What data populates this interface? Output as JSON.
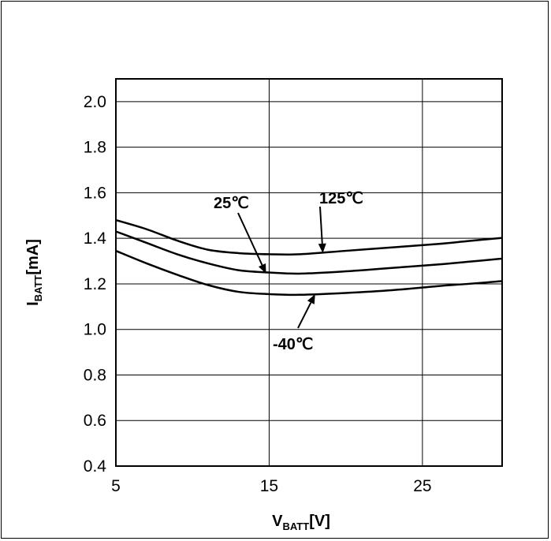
{
  "chart_data": {
    "type": "line",
    "title": "",
    "xlabel": {
      "main": "V",
      "sub": "BATT",
      "unit": "[V]"
    },
    "ylabel": {
      "main": "I",
      "sub": "BATT",
      "unit": "[mA]"
    },
    "xlim": [
      5,
      30.2
    ],
    "ylim": [
      0.4,
      2.1
    ],
    "x_ticks": [
      5,
      15,
      25
    ],
    "y_ticks": [
      0.4,
      0.6,
      0.8,
      1.0,
      1.2,
      1.4,
      1.6,
      1.8,
      2.0
    ],
    "y_tick_labels": [
      "0.4",
      "0.6",
      "0.8",
      "1.0",
      "1.2",
      "1.4",
      "1.6",
      "1.8",
      "2.0"
    ],
    "grid": true,
    "series": [
      {
        "name": "125℃",
        "x": [
          5,
          7,
          9,
          11,
          13,
          15,
          17,
          20,
          23,
          26,
          28,
          30.2
        ],
        "values": [
          1.48,
          1.44,
          1.39,
          1.35,
          1.335,
          1.33,
          1.33,
          1.345,
          1.36,
          1.375,
          1.388,
          1.402
        ]
      },
      {
        "name": "25℃",
        "x": [
          5,
          7,
          9,
          11,
          13,
          15,
          17,
          20,
          23,
          26,
          28,
          30.2
        ],
        "values": [
          1.43,
          1.38,
          1.33,
          1.29,
          1.26,
          1.25,
          1.245,
          1.255,
          1.27,
          1.285,
          1.297,
          1.311
        ]
      },
      {
        "name": "-40℃",
        "x": [
          5,
          7,
          9,
          11,
          13,
          15,
          17,
          20,
          23,
          26,
          28,
          30.2
        ],
        "values": [
          1.345,
          1.29,
          1.24,
          1.195,
          1.165,
          1.155,
          1.152,
          1.16,
          1.172,
          1.19,
          1.2,
          1.212
        ]
      }
    ],
    "annotations": [
      {
        "text": "125℃",
        "series": "125℃",
        "arrow_x": 18.5,
        "arrow_y": 1.335
      },
      {
        "text": "25℃",
        "series": "25℃",
        "arrow_x": 14.8,
        "arrow_y": 1.245
      },
      {
        "text": "-40℃",
        "series": "-40℃",
        "arrow_x": 18,
        "arrow_y": 1.155
      }
    ]
  }
}
